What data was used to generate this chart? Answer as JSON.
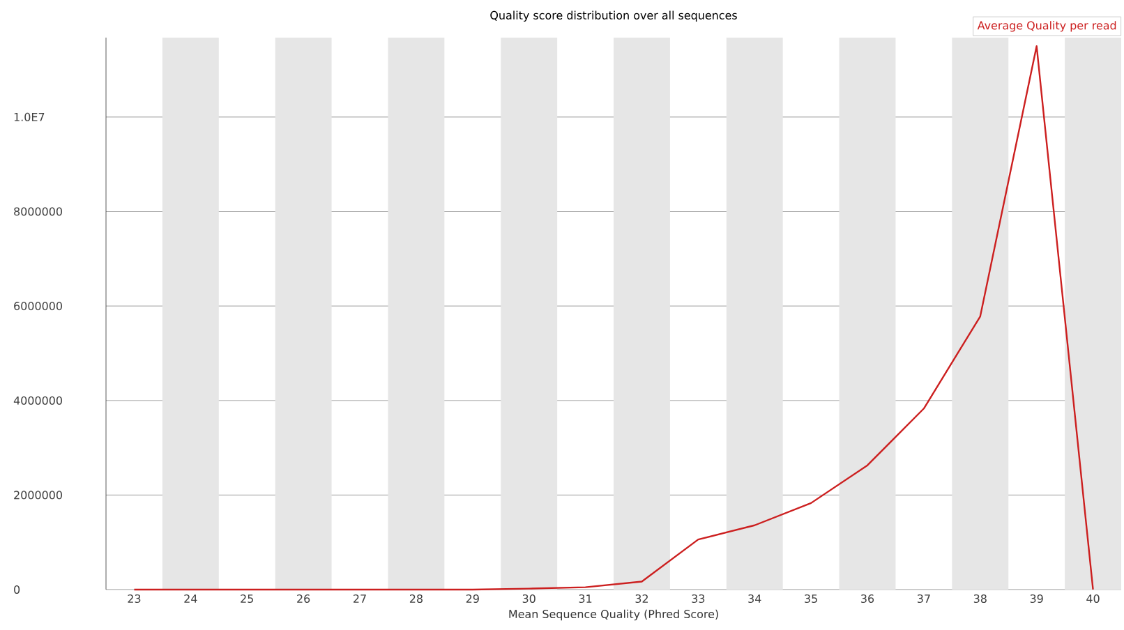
{
  "chart_data": {
    "type": "line",
    "title": "Quality score distribution over all sequences",
    "xlabel": "Mean Sequence Quality (Phred Score)",
    "x": [
      23,
      24,
      25,
      26,
      27,
      28,
      29,
      30,
      31,
      32,
      33,
      34,
      35,
      36,
      37,
      38,
      39,
      40
    ],
    "series": [
      {
        "name": "Average Quality per read",
        "color": "#cc1f1f",
        "values": [
          0,
          0,
          0,
          0,
          0,
          0,
          0,
          20000,
          50000,
          170000,
          1060000,
          1360000,
          1830000,
          2630000,
          3830000,
          5780000,
          11500000,
          0
        ]
      }
    ],
    "xlim": [
      22.5,
      40.5
    ],
    "ylim": [
      0,
      11680000
    ],
    "xticks": [
      23,
      24,
      25,
      26,
      27,
      28,
      29,
      30,
      31,
      32,
      33,
      34,
      35,
      36,
      37,
      38,
      39,
      40
    ],
    "yticks": [
      0,
      2000000,
      4000000,
      6000000,
      8000000,
      {
        "value": 10000000,
        "label": "1.0E7"
      }
    ],
    "bands": [
      {
        "axis": "x",
        "from": 23.5,
        "to": 24.5,
        "color": "#e6e6e6"
      },
      {
        "axis": "x",
        "from": 25.5,
        "to": 26.5,
        "color": "#e6e6e6"
      },
      {
        "axis": "x",
        "from": 27.5,
        "to": 28.5,
        "color": "#e6e6e6"
      },
      {
        "axis": "x",
        "from": 29.5,
        "to": 30.5,
        "color": "#e6e6e6"
      },
      {
        "axis": "x",
        "from": 31.5,
        "to": 32.5,
        "color": "#e6e6e6"
      },
      {
        "axis": "x",
        "from": 33.5,
        "to": 34.5,
        "color": "#e6e6e6"
      },
      {
        "axis": "x",
        "from": 35.5,
        "to": 36.5,
        "color": "#e6e6e6"
      },
      {
        "axis": "x",
        "from": 37.5,
        "to": 38.5,
        "color": "#e6e6e6"
      },
      {
        "axis": "x",
        "from": 39.5,
        "to": 40.5,
        "color": "#e6e6e6"
      }
    ],
    "grid": "y",
    "legend": "top right",
    "marker": "none",
    "line_style": "solid"
  }
}
